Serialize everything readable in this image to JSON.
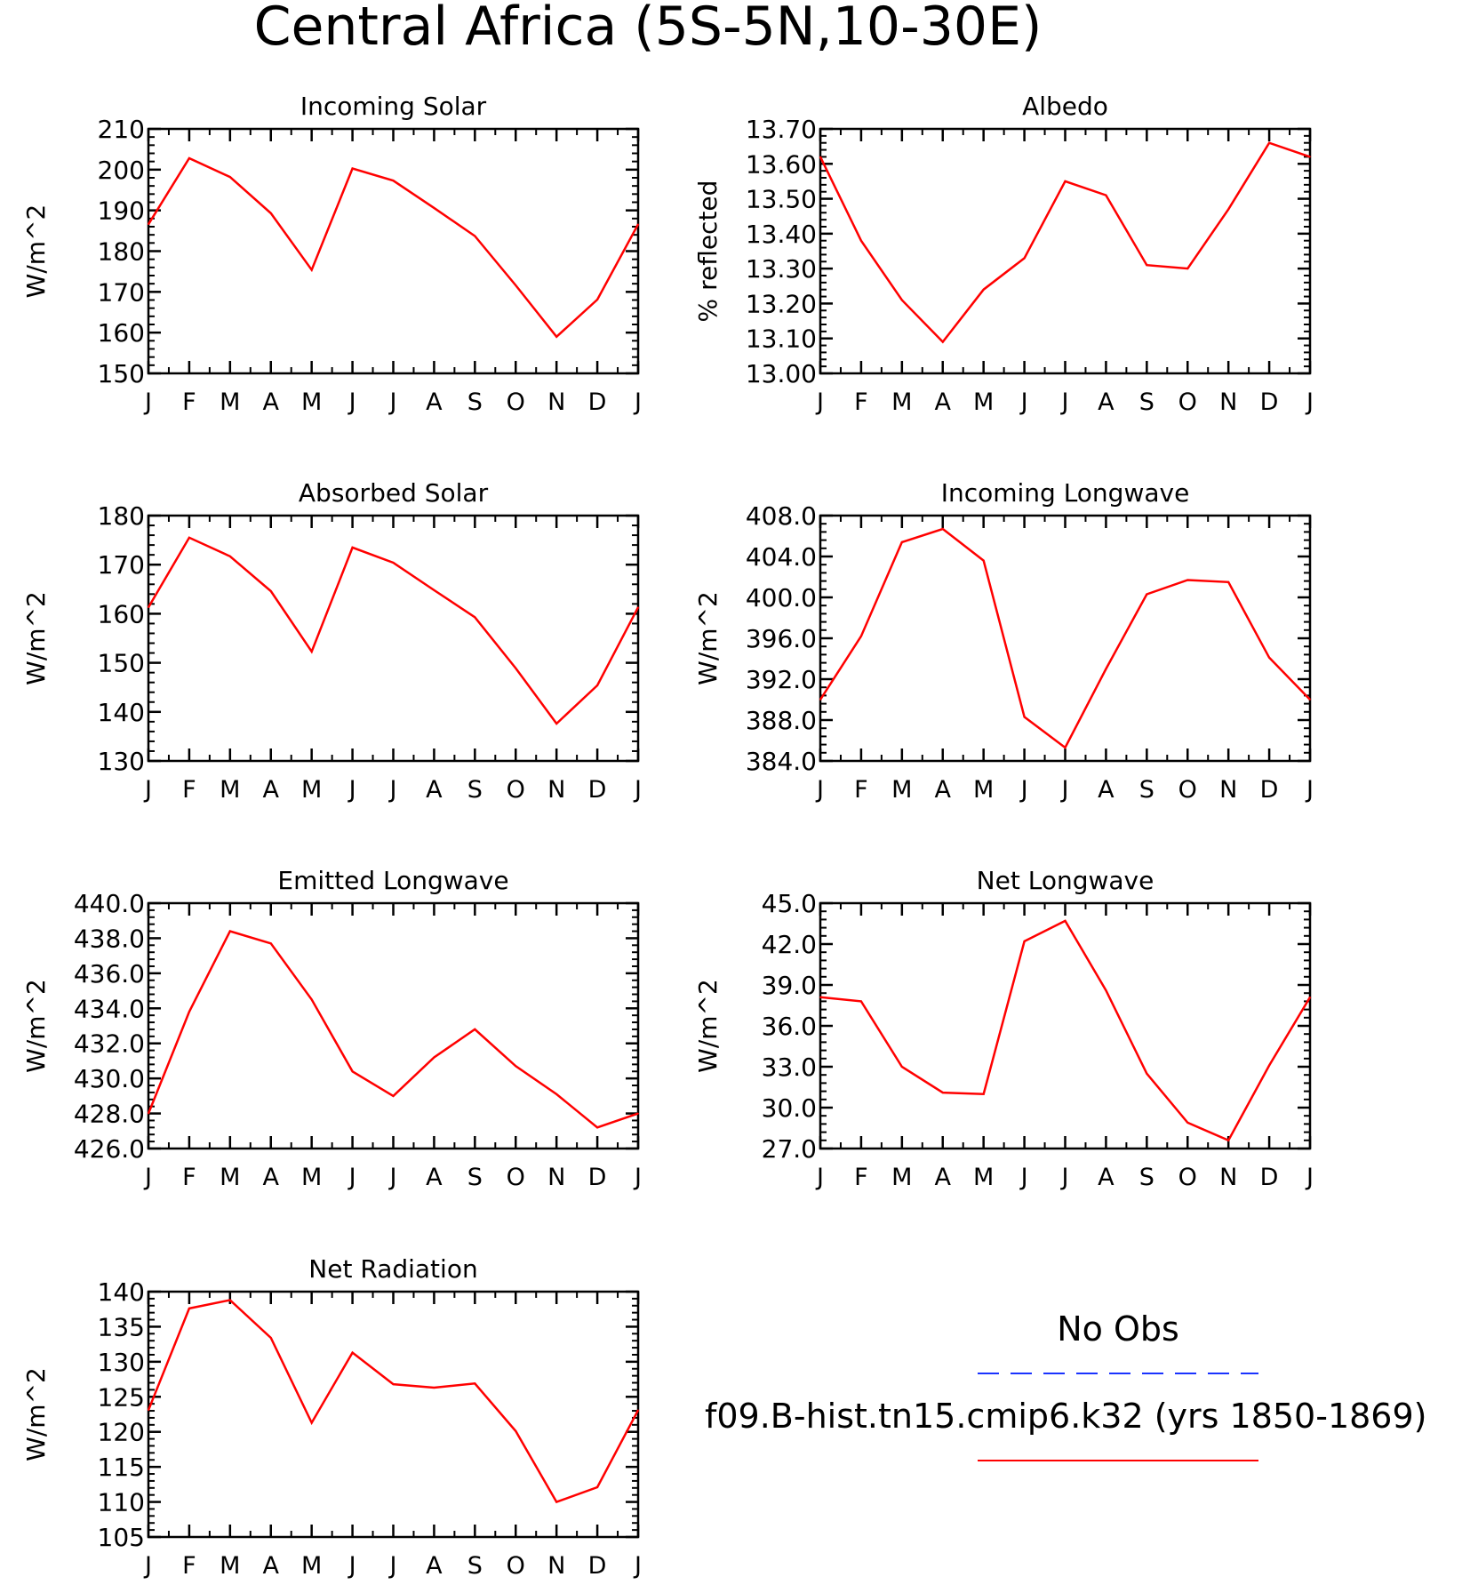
{
  "figure": {
    "title": "Central Africa (5S-5N,10-30E)",
    "months": [
      "J",
      "F",
      "M",
      "A",
      "M",
      "J",
      "J",
      "A",
      "S",
      "O",
      "N",
      "D",
      "J"
    ],
    "legend": {
      "obs_label": "No Obs",
      "obs_color": "#1a33ff",
      "model_label": "f09.B-hist.tn15.cmip6.k32 (yrs 1850-1869)",
      "model_color": "#ff0000"
    }
  },
  "chart_data": [
    {
      "type": "line",
      "title": "Incoming Solar",
      "ylabel": "W/m^2",
      "ylim": [
        150,
        210
      ],
      "yticks": [
        "150",
        "160",
        "170",
        "180",
        "190",
        "200",
        "210"
      ],
      "x": [
        "J",
        "F",
        "M",
        "A",
        "M",
        "J",
        "J",
        "A",
        "S",
        "O",
        "N",
        "D",
        "J"
      ],
      "series": [
        {
          "name": "f09.B-hist.tn15.cmip6.k32 (yrs 1850-1869)",
          "color": "#ff0000",
          "values": [
            186.6,
            202.8,
            198.2,
            189.3,
            175.4,
            200.3,
            197.3,
            190.6,
            183.7,
            171.6,
            159.0,
            168.1,
            186.6
          ]
        }
      ]
    },
    {
      "type": "line",
      "title": "Albedo",
      "ylabel": "% reflected",
      "ylim": [
        13.0,
        13.7
      ],
      "yticks": [
        "13.00",
        "13.10",
        "13.20",
        "13.30",
        "13.40",
        "13.50",
        "13.60",
        "13.70"
      ],
      "x": [
        "J",
        "F",
        "M",
        "A",
        "M",
        "J",
        "J",
        "A",
        "S",
        "O",
        "N",
        "D",
        "J"
      ],
      "series": [
        {
          "name": "f09.B-hist.tn15.cmip6.k32 (yrs 1850-1869)",
          "color": "#ff0000",
          "values": [
            13.62,
            13.38,
            13.21,
            13.09,
            13.24,
            13.33,
            13.55,
            13.51,
            13.31,
            13.3,
            13.47,
            13.66,
            13.62
          ]
        }
      ]
    },
    {
      "type": "line",
      "title": "Absorbed Solar",
      "ylabel": "W/m^2",
      "ylim": [
        130,
        180
      ],
      "yticks": [
        "130",
        "140",
        "150",
        "160",
        "170",
        "180"
      ],
      "x": [
        "J",
        "F",
        "M",
        "A",
        "M",
        "J",
        "J",
        "A",
        "S",
        "O",
        "N",
        "D",
        "J"
      ],
      "series": [
        {
          "name": "f09.B-hist.tn15.cmip6.k32 (yrs 1850-1869)",
          "color": "#ff0000",
          "values": [
            161.3,
            175.5,
            171.7,
            164.6,
            152.3,
            173.5,
            170.4,
            164.8,
            159.3,
            148.9,
            137.6,
            145.4,
            161.3
          ]
        }
      ]
    },
    {
      "type": "line",
      "title": "Incoming Longwave",
      "ylabel": "W/m^2",
      "ylim": [
        384.0,
        408.0
      ],
      "yticks": [
        "384.0",
        "388.0",
        "392.0",
        "396.0",
        "400.0",
        "404.0",
        "408.0"
      ],
      "x": [
        "J",
        "F",
        "M",
        "A",
        "M",
        "J",
        "J",
        "A",
        "S",
        "O",
        "N",
        "D",
        "J"
      ],
      "series": [
        {
          "name": "f09.B-hist.tn15.cmip6.k32 (yrs 1850-1869)",
          "color": "#ff0000",
          "values": [
            390.0,
            396.2,
            405.4,
            406.7,
            403.6,
            388.3,
            385.3,
            393.0,
            400.3,
            401.7,
            401.5,
            394.1,
            390.0
          ]
        }
      ]
    },
    {
      "type": "line",
      "title": "Emitted Longwave",
      "ylabel": "W/m^2",
      "ylim": [
        426.0,
        440.0
      ],
      "yticks": [
        "426.0",
        "428.0",
        "430.0",
        "432.0",
        "434.0",
        "436.0",
        "438.0",
        "440.0"
      ],
      "x": [
        "J",
        "F",
        "M",
        "A",
        "M",
        "J",
        "J",
        "A",
        "S",
        "O",
        "N",
        "D",
        "J"
      ],
      "series": [
        {
          "name": "f09.B-hist.tn15.cmip6.k32 (yrs 1850-1869)",
          "color": "#ff0000",
          "values": [
            428.0,
            433.8,
            438.4,
            437.7,
            434.5,
            430.4,
            429.0,
            431.2,
            432.8,
            430.7,
            429.1,
            427.2,
            428.0
          ]
        }
      ]
    },
    {
      "type": "line",
      "title": "Net Longwave",
      "ylabel": "W/m^2",
      "ylim": [
        27.0,
        45.0
      ],
      "yticks": [
        "27.0",
        "30.0",
        "33.0",
        "36.0",
        "39.0",
        "42.0",
        "45.0"
      ],
      "x": [
        "J",
        "F",
        "M",
        "A",
        "M",
        "J",
        "J",
        "A",
        "S",
        "O",
        "N",
        "D",
        "J"
      ],
      "series": [
        {
          "name": "f09.B-hist.tn15.cmip6.k32 (yrs 1850-1869)",
          "color": "#ff0000",
          "values": [
            38.1,
            37.8,
            33.0,
            31.1,
            31.0,
            42.2,
            43.7,
            38.6,
            32.5,
            28.9,
            27.6,
            33.1,
            38.1
          ]
        }
      ]
    },
    {
      "type": "line",
      "title": "Net Radiation",
      "ylabel": "W/m^2",
      "ylim": [
        105,
        140
      ],
      "yticks": [
        "105",
        "110",
        "115",
        "120",
        "125",
        "130",
        "135",
        "140"
      ],
      "x": [
        "J",
        "F",
        "M",
        "A",
        "M",
        "J",
        "J",
        "A",
        "S",
        "O",
        "N",
        "D",
        "J"
      ],
      "series": [
        {
          "name": "f09.B-hist.tn15.cmip6.k32 (yrs 1850-1869)",
          "color": "#ff0000",
          "values": [
            123.1,
            137.6,
            138.8,
            133.4,
            121.3,
            131.3,
            126.8,
            126.3,
            126.9,
            120.1,
            110.0,
            112.1,
            123.1
          ]
        }
      ]
    }
  ]
}
